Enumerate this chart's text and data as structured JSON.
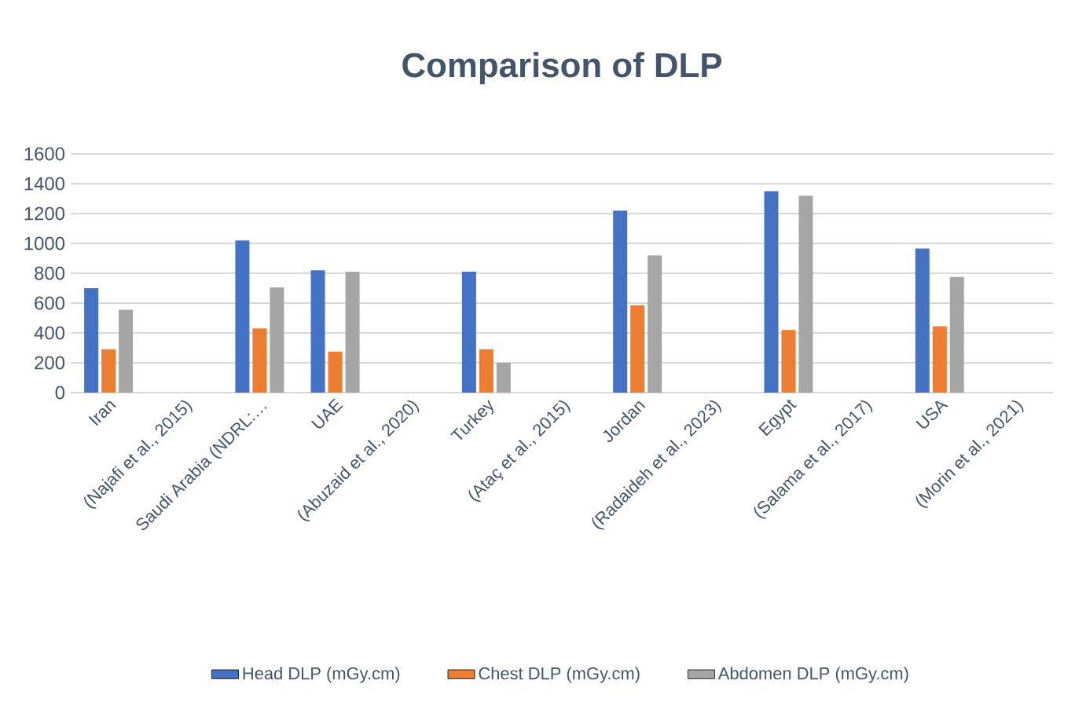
{
  "chart_data": {
    "type": "bar",
    "title": "Comparison of DLP",
    "categories": [
      "Iran",
      "(Najafi et al., 2015)",
      "Saudi Arabia (NDRL:…",
      "UAE",
      "(Abuzaid et al., 2020)",
      "Turkey",
      "(Ataç et al., 2015)",
      "Jordan",
      "(Radaideh et al., 2023)",
      "Egypt",
      "(Salama et al., 2017)",
      "USA",
      "(Morin et al., 2021)"
    ],
    "series": [
      {
        "name": "Head DLP (mGy.cm)",
        "color": "#4472c4",
        "values": [
          700,
          null,
          1020,
          820,
          null,
          810,
          null,
          1220,
          null,
          1350,
          null,
          965,
          null
        ]
      },
      {
        "name": "Chest DLP (mGy.cm)",
        "color": "#ed7d31",
        "values": [
          290,
          null,
          430,
          275,
          null,
          290,
          null,
          585,
          null,
          420,
          null,
          445,
          null
        ]
      },
      {
        "name": "Abdomen DLP (mGy.cm)",
        "color": "#a5a5a5",
        "values": [
          555,
          null,
          705,
          810,
          null,
          200,
          null,
          920,
          null,
          1320,
          null,
          775,
          null
        ]
      }
    ],
    "ylim": [
      0,
      1600
    ],
    "yticks": [
      0,
      200,
      400,
      600,
      800,
      1000,
      1200,
      1400,
      1600
    ],
    "grid": "y",
    "legend": "bottom"
  }
}
